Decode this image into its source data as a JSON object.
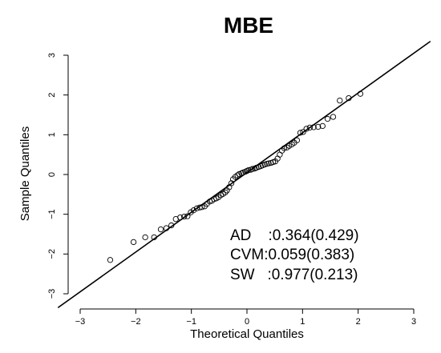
{
  "chart_data": {
    "type": "scatter",
    "title": "MBE",
    "xlabel": "Theoretical Quantiles",
    "ylabel": "Sample Quantiles",
    "xlim": [
      -3,
      3
    ],
    "ylim": [
      -3,
      3
    ],
    "xticks": [
      -3,
      -2,
      -1,
      0,
      1,
      2,
      3
    ],
    "yticks": [
      -3,
      -2,
      -1,
      0,
      1,
      2,
      3
    ],
    "grid": false,
    "reference_line": {
      "intercept": 0.05,
      "slope": 1.0
    },
    "annotations": [
      "AD    :0.364(0.429)",
      "CVM:0.059(0.383)",
      "SW   :0.977(0.213)"
    ],
    "points": [
      {
        "x": -2.46,
        "y": -2.15
      },
      {
        "x": -2.04,
        "y": -1.7
      },
      {
        "x": -1.83,
        "y": -1.58
      },
      {
        "x": -1.67,
        "y": -1.58
      },
      {
        "x": -1.55,
        "y": -1.38
      },
      {
        "x": -1.45,
        "y": -1.35
      },
      {
        "x": -1.36,
        "y": -1.28
      },
      {
        "x": -1.28,
        "y": -1.12
      },
      {
        "x": -1.2,
        "y": -1.08
      },
      {
        "x": -1.13,
        "y": -1.06
      },
      {
        "x": -1.07,
        "y": -1.05
      },
      {
        "x": -1.01,
        "y": -0.95
      },
      {
        "x": -0.96,
        "y": -0.9
      },
      {
        "x": -0.9,
        "y": -0.85
      },
      {
        "x": -0.85,
        "y": -0.83
      },
      {
        "x": -0.81,
        "y": -0.82
      },
      {
        "x": -0.76,
        "y": -0.8
      },
      {
        "x": -0.72,
        "y": -0.74
      },
      {
        "x": -0.67,
        "y": -0.68
      },
      {
        "x": -0.63,
        "y": -0.66
      },
      {
        "x": -0.59,
        "y": -0.62
      },
      {
        "x": -0.55,
        "y": -0.6
      },
      {
        "x": -0.51,
        "y": -0.57
      },
      {
        "x": -0.47,
        "y": -0.52
      },
      {
        "x": -0.43,
        "y": -0.49
      },
      {
        "x": -0.39,
        "y": -0.45
      },
      {
        "x": -0.36,
        "y": -0.4
      },
      {
        "x": -0.32,
        "y": -0.32
      },
      {
        "x": -0.28,
        "y": -0.22
      },
      {
        "x": -0.25,
        "y": -0.12
      },
      {
        "x": -0.21,
        "y": -0.06
      },
      {
        "x": -0.17,
        "y": -0.02
      },
      {
        "x": -0.14,
        "y": 0.01
      },
      {
        "x": -0.1,
        "y": 0.03
      },
      {
        "x": -0.07,
        "y": 0.05
      },
      {
        "x": -0.03,
        "y": 0.07
      },
      {
        "x": 0.0,
        "y": 0.09
      },
      {
        "x": 0.03,
        "y": 0.11
      },
      {
        "x": 0.07,
        "y": 0.12
      },
      {
        "x": 0.1,
        "y": 0.14
      },
      {
        "x": 0.14,
        "y": 0.15
      },
      {
        "x": 0.17,
        "y": 0.17
      },
      {
        "x": 0.21,
        "y": 0.19
      },
      {
        "x": 0.25,
        "y": 0.21
      },
      {
        "x": 0.28,
        "y": 0.23
      },
      {
        "x": 0.32,
        "y": 0.25
      },
      {
        "x": 0.36,
        "y": 0.27
      },
      {
        "x": 0.39,
        "y": 0.28
      },
      {
        "x": 0.43,
        "y": 0.29
      },
      {
        "x": 0.47,
        "y": 0.31
      },
      {
        "x": 0.51,
        "y": 0.33
      },
      {
        "x": 0.55,
        "y": 0.4
      },
      {
        "x": 0.59,
        "y": 0.5
      },
      {
        "x": 0.63,
        "y": 0.6
      },
      {
        "x": 0.67,
        "y": 0.66
      },
      {
        "x": 0.72,
        "y": 0.68
      },
      {
        "x": 0.76,
        "y": 0.72
      },
      {
        "x": 0.81,
        "y": 0.76
      },
      {
        "x": 0.85,
        "y": 0.8
      },
      {
        "x": 0.9,
        "y": 0.86
      },
      {
        "x": 0.96,
        "y": 1.05
      },
      {
        "x": 1.01,
        "y": 1.07
      },
      {
        "x": 1.07,
        "y": 1.15
      },
      {
        "x": 1.13,
        "y": 1.18
      },
      {
        "x": 1.2,
        "y": 1.19
      },
      {
        "x": 1.28,
        "y": 1.2
      },
      {
        "x": 1.36,
        "y": 1.22
      },
      {
        "x": 1.45,
        "y": 1.4
      },
      {
        "x": 1.55,
        "y": 1.45
      },
      {
        "x": 1.67,
        "y": 1.86
      },
      {
        "x": 1.83,
        "y": 1.92
      },
      {
        "x": 2.04,
        "y": 2.03
      }
    ]
  }
}
